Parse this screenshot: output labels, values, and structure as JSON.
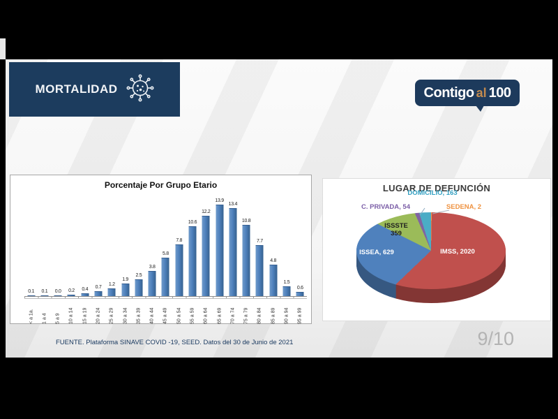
{
  "header": {
    "title": "MORTALIDAD"
  },
  "logo": {
    "part1": "Contigo",
    "part2": "al",
    "part3": "100"
  },
  "footer": {
    "source": "FUENTE. Plataforma SINAVE COVID -19, SEED. Datos del 30 de Junio de 2021",
    "page_indicator": "9/10"
  },
  "chart_data": [
    {
      "type": "bar",
      "title": "Porcentaje Por Grupo Etario",
      "categories": [
        "< a 1a.",
        "1 a 4",
        "5 a 9",
        "10 a 14",
        "15 a 19",
        "20 a 24",
        "25 a 29",
        "30 a 34",
        "35 a 39",
        "40 a 44",
        "45 a 49",
        "50 a 54",
        "55 a 59",
        "60 a 64",
        "65 a 69",
        "70 a 74",
        "75 a 79",
        "80 a 84",
        "85 a 89",
        "90 a 94",
        "95 a 99"
      ],
      "values": [
        0.1,
        0.1,
        0.0,
        0.2,
        0.4,
        0.7,
        1.2,
        1.9,
        2.5,
        3.8,
        5.8,
        7.8,
        10.6,
        12.2,
        13.9,
        13.4,
        10.8,
        7.7,
        4.8,
        1.5,
        0.6
      ],
      "bar_color": "#4F81BD",
      "ylim": [
        0,
        14
      ],
      "grid": false
    },
    {
      "type": "pie",
      "title": "LUGAR DE DEFUNCIÓN",
      "legend_position": "labels-on-chart",
      "slices": [
        {
          "label": "SEDENA",
          "value": 2,
          "color": "#F79646",
          "label_text": "SEDENA, 2",
          "label_color": "#ef9240"
        },
        {
          "label": "IMSS",
          "value": 2020,
          "color": "#C0504D",
          "label_text": "IMSS, 2020",
          "label_color": "#ffffff"
        },
        {
          "label": "ISSEA",
          "value": 629,
          "color": "#4F81BD",
          "label_text": "ISSEA, 629",
          "label_color": "#ffffff"
        },
        {
          "label": "ISSSTE",
          "value": 359,
          "color": "#9BBB59",
          "label_text": "ISSSTE 359",
          "label_color": "#1f1f1f"
        },
        {
          "label": "C. PRIVADA",
          "value": 54,
          "color": "#8064A2",
          "label_text": "C. PRIVADA, 54",
          "label_color": "#7b5ea7"
        },
        {
          "label": "DOMICILIO",
          "value": 163,
          "color": "#4BACC6",
          "label_text": "DOMICILIO, 163",
          "label_color": "#33a0c2"
        }
      ]
    }
  ]
}
